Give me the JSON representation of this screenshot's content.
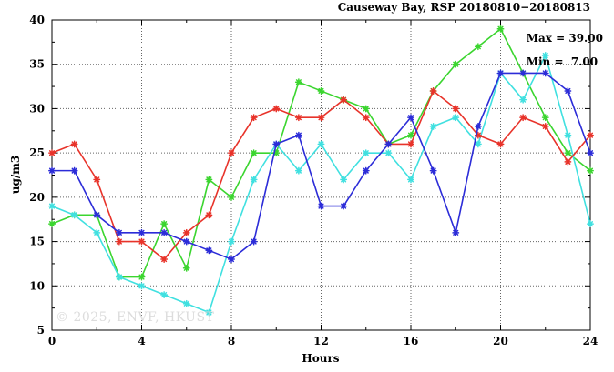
{
  "chart": {
    "title": "Causeway Bay, RSP 20180810−20180813",
    "annotation": {
      "max_label": "Max = 39.00",
      "min_label": "Min =  7.00"
    },
    "watermark": "© 2025, ENVF, HKUST",
    "xlabel": "Hours",
    "ylabel": "ug/m3"
  },
  "chart_data": {
    "type": "line",
    "title": "Causeway Bay, RSP 20180810−20180813",
    "xlabel": "Hours",
    "ylabel": "ug/m3",
    "xlim": [
      0,
      24
    ],
    "ylim": [
      5,
      40
    ],
    "x_major_step": 4,
    "x_minor_step": 2,
    "y_major_step": 5,
    "y_minor_step": 2.5,
    "grid": true,
    "legend_position": "none",
    "max": 39.0,
    "min": 7.0,
    "x": [
      0,
      1,
      2,
      3,
      4,
      5,
      6,
      7,
      8,
      9,
      10,
      11,
      12,
      13,
      14,
      15,
      16,
      17,
      18,
      19,
      20,
      21,
      22,
      23,
      24
    ],
    "series": [
      {
        "name": "series-green",
        "color": "#3bd52f",
        "values": [
          17,
          18,
          18,
          11,
          11,
          17,
          12,
          22,
          20,
          25,
          25,
          33,
          32,
          31,
          30,
          26,
          27,
          32,
          35,
          37,
          39,
          34,
          29,
          25,
          23
        ]
      },
      {
        "name": "series-cyan",
        "color": "#40e0e0",
        "values": [
          19,
          18,
          16,
          11,
          10,
          9,
          8,
          7,
          15,
          22,
          26,
          23,
          26,
          22,
          25,
          25,
          22,
          28,
          29,
          26,
          34,
          31,
          36,
          27,
          17
        ]
      },
      {
        "name": "series-red",
        "color": "#e8332a",
        "values": [
          25,
          26,
          22,
          15,
          15,
          13,
          16,
          18,
          25,
          29,
          30,
          29,
          29,
          31,
          29,
          26,
          26,
          32,
          30,
          27,
          26,
          29,
          28,
          24,
          27
        ]
      },
      {
        "name": "series-blue",
        "color": "#2c2cd8",
        "values": [
          23,
          23,
          18,
          16,
          16,
          16,
          15,
          14,
          13,
          15,
          26,
          27,
          19,
          19,
          23,
          26,
          29,
          23,
          16,
          28,
          34,
          34,
          34,
          32,
          25
        ]
      }
    ]
  }
}
